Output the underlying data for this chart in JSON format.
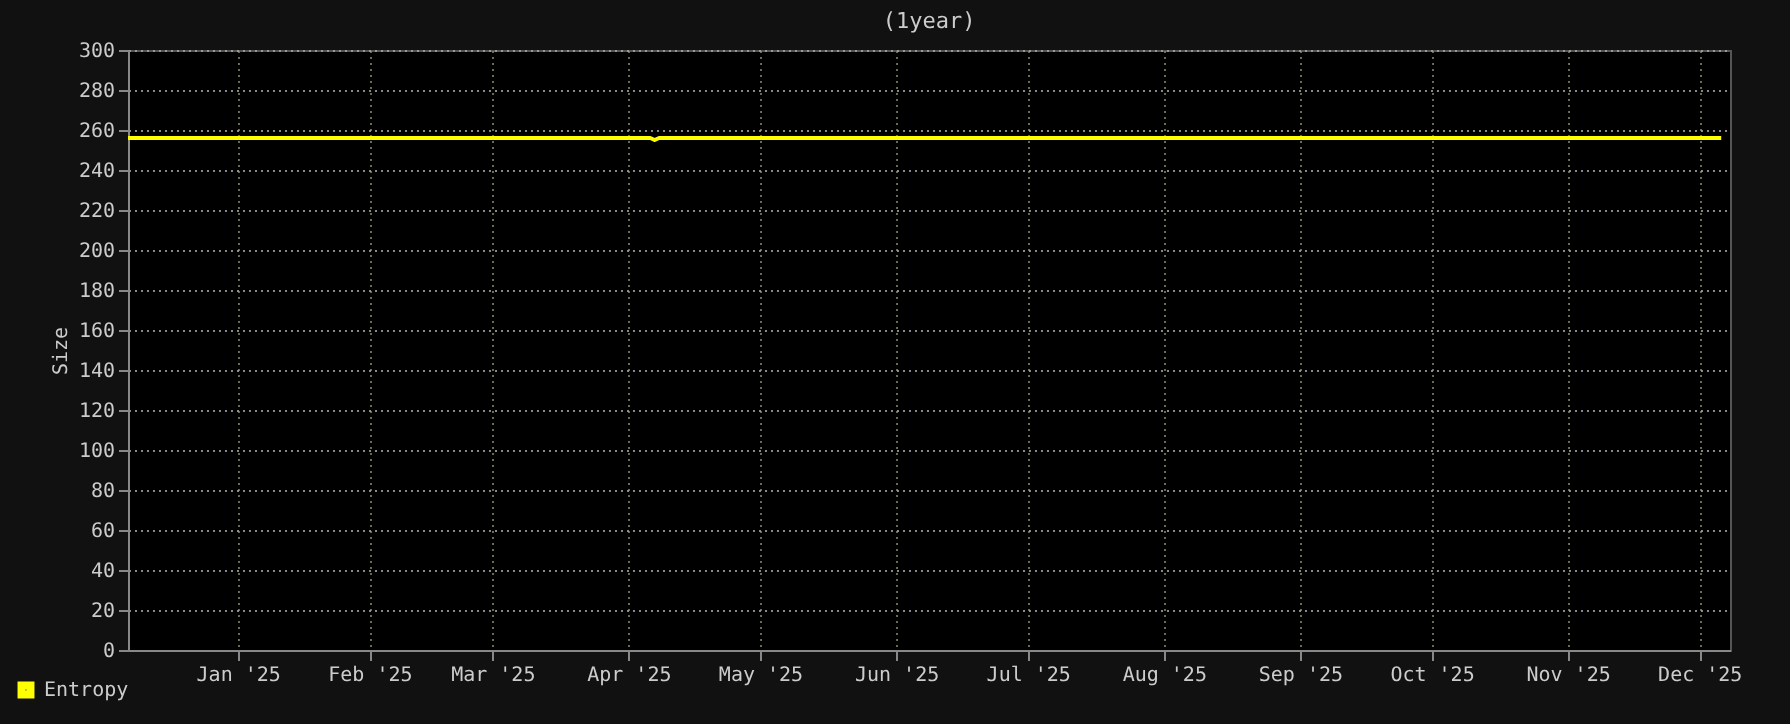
{
  "chart_data": {
    "type": "line",
    "title": "(1year)",
    "ylabel": "Size",
    "x": [
      "2024-12-22",
      "2025-04-20",
      "2025-04-21",
      "2025-04-22",
      "2025-12-20"
    ],
    "series": [
      {
        "name": "Entropy",
        "color": "#ffff00",
        "values": [
          256,
          256,
          255,
          256,
          256
        ]
      }
    ],
    "xlim": [
      "2024-12-22",
      "2025-12-22"
    ],
    "xticks": [
      {
        "value": "2025-01-16",
        "label": "Jan '25"
      },
      {
        "value": "2025-02-15",
        "label": "Feb '25"
      },
      {
        "value": "2025-03-15",
        "label": "Mar '25"
      },
      {
        "value": "2025-04-15",
        "label": "Apr '25"
      },
      {
        "value": "2025-05-15",
        "label": "May '25"
      },
      {
        "value": "2025-06-15",
        "label": "Jun '25"
      },
      {
        "value": "2025-07-15",
        "label": "Jul '25"
      },
      {
        "value": "2025-08-15",
        "label": "Aug '25"
      },
      {
        "value": "2025-09-15",
        "label": "Sep '25"
      },
      {
        "value": "2025-10-15",
        "label": "Oct '25"
      },
      {
        "value": "2025-11-15",
        "label": "Nov '25"
      },
      {
        "value": "2025-12-15",
        "label": "Dec '25"
      }
    ],
    "ylim": [
      0,
      300
    ],
    "yticks": [
      0,
      20,
      40,
      60,
      80,
      100,
      120,
      140,
      160,
      180,
      200,
      220,
      240,
      260,
      280,
      300
    ],
    "grid": true,
    "legend": "bottom left",
    "marker": "none",
    "line_style": "solid"
  }
}
